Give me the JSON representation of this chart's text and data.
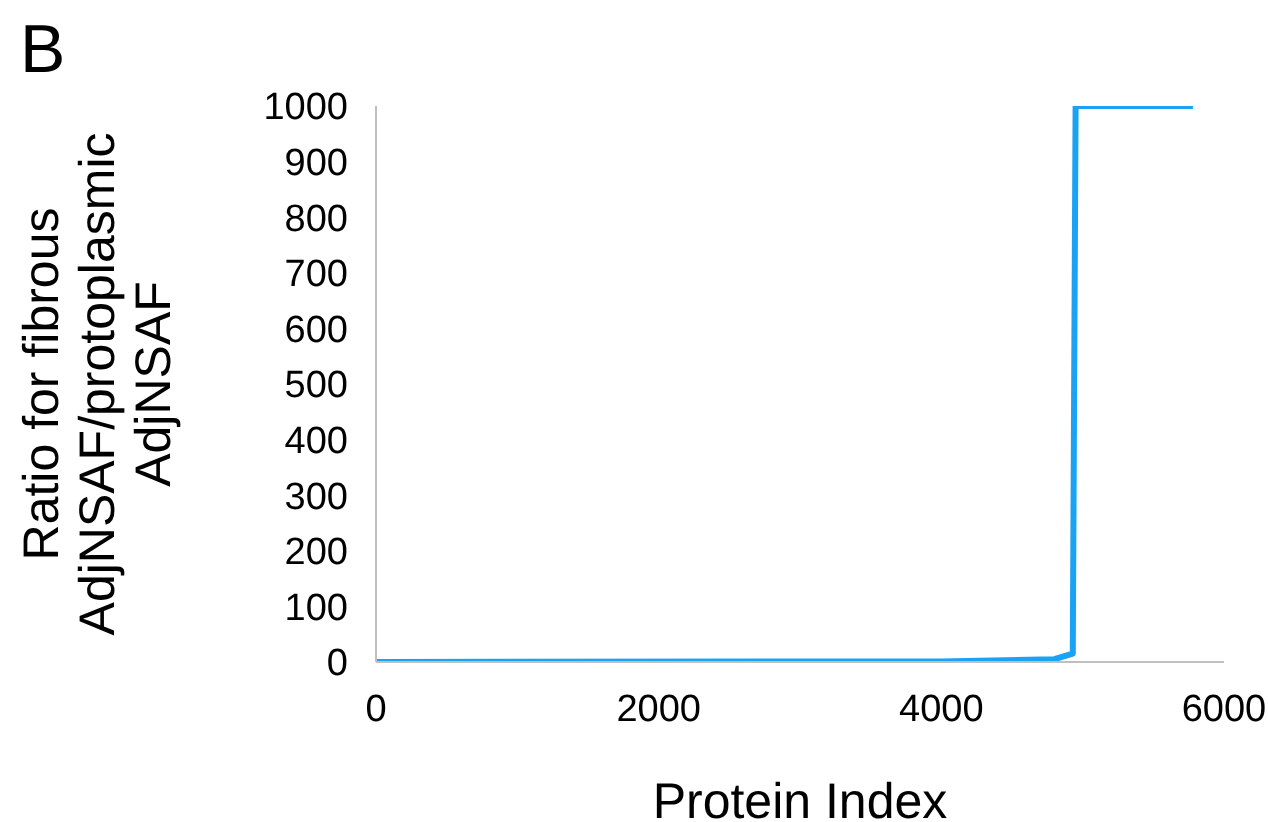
{
  "chart_data": {
    "type": "line",
    "title": "B",
    "xlabel": "Protein Index",
    "ylabel": "Ratio for fibrous\nAdjNSAF/protoplasmic\nAdjNSAF",
    "x": [
      1,
      4000,
      4800,
      4930,
      4950,
      5780
    ],
    "series": [
      {
        "color": "#1aa3f5",
        "values": [
          0,
          1,
          5,
          15,
          1000,
          1000
        ]
      }
    ],
    "xlim": [
      0,
      6000
    ],
    "xticks": [
      0,
      2000,
      4000,
      6000
    ],
    "ylim": [
      0,
      1000
    ],
    "yticks": [
      0,
      100,
      200,
      300,
      400,
      500,
      600,
      700,
      800,
      900,
      1000
    ],
    "grid": false,
    "legend": false,
    "marker": "none",
    "line_style": "solid"
  }
}
